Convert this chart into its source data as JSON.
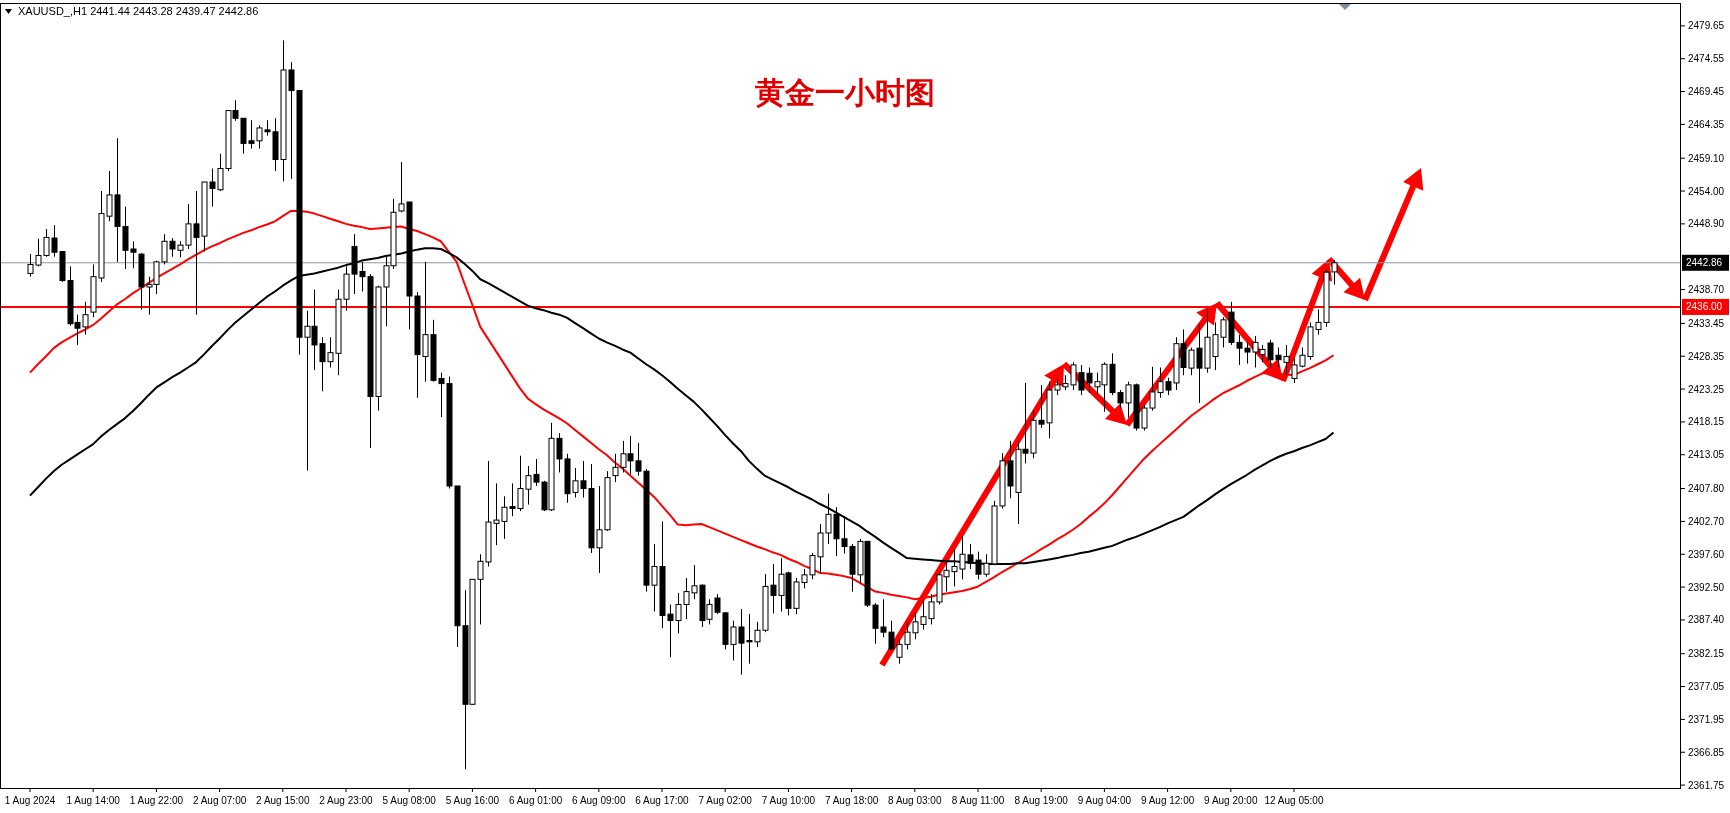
{
  "chart_data": {
    "type": "candlestick",
    "title": "黄金一小时图",
    "subtitle": "XAUUSD_,H1  2441.44 2443.28 2439.47 2442.86",
    "ylim": [
      2361.3,
      2483.2
    ],
    "categories": [
      "1 Aug 2024",
      null,
      null,
      null,
      null,
      null,
      null,
      null,
      "1 Aug 14:00",
      null,
      null,
      null,
      null,
      null,
      null,
      null,
      "1 Aug 22:00",
      null,
      null,
      null,
      null,
      null,
      null,
      null,
      "2 Aug 07:00",
      null,
      null,
      null,
      null,
      null,
      null,
      null,
      "2 Aug 15:00",
      null,
      null,
      null,
      null,
      null,
      null,
      null,
      "2 Aug 23:00",
      null,
      null,
      null,
      null,
      null,
      null,
      null,
      "5 Aug 08:00",
      null,
      null,
      null,
      null,
      null,
      null,
      null,
      "5 Aug 16:00",
      null,
      null,
      null,
      null,
      null,
      null,
      null,
      "6 Aug 01:00",
      null,
      null,
      null,
      null,
      null,
      null,
      null,
      "6 Aug 09:00",
      null,
      null,
      null,
      null,
      null,
      null,
      null,
      "6 Aug 17:00",
      null,
      null,
      null,
      null,
      null,
      null,
      null,
      "7 Aug 02:00",
      null,
      null,
      null,
      null,
      null,
      null,
      null,
      "7 Aug 10:00",
      null,
      null,
      null,
      null,
      null,
      null,
      null,
      "7 Aug 18:00",
      null,
      null,
      null,
      null,
      null,
      null,
      null,
      "8 Aug 03:00",
      null,
      null,
      null,
      null,
      null,
      null,
      null,
      "8 Aug 11:00",
      null,
      null,
      null,
      null,
      null,
      null,
      null,
      "8 Aug 19:00",
      null,
      null,
      null,
      null,
      null,
      null,
      null,
      "9 Aug 04:00",
      null,
      null,
      null,
      null,
      null,
      null,
      null,
      "9 Aug 12:00",
      null,
      null,
      null,
      null,
      null,
      null,
      null,
      "9 Aug 20:00",
      null,
      null,
      null,
      null,
      null,
      null,
      null,
      "12 Aug 05:00",
      null,
      null,
      null,
      null,
      null
    ],
    "yticks": [
      2479.65,
      2474.55,
      2469.45,
      2464.35,
      {
        "value": 2459.1,
        "label": "2459.10"
      },
      {
        "value": 2454,
        "label": "2454.00"
      },
      {
        "value": 2448.9,
        "label": "2448.90"
      },
      {
        "value": 2438.7,
        "label": "2438.70"
      },
      2433.45,
      2428.35,
      2423.25,
      2418.15,
      2413.05,
      {
        "value": 2407.8,
        "label": "2407.80"
      },
      {
        "value": 2402.7,
        "label": "2402.70"
      },
      {
        "value": 2397.6,
        "label": "2397.60"
      },
      {
        "value": 2392.5,
        "label": "2392.50"
      },
      {
        "value": 2387.4,
        "label": "2387.40"
      },
      2382.15,
      2377.05,
      2371.95,
      2366.85,
      2361.75
    ],
    "ref_lines": [
      {
        "axis": "y",
        "value": 2442.86,
        "label": "2442.86",
        "color": "#8a98a8"
      },
      {
        "axis": "y",
        "value": 2436,
        "label": "2436.00",
        "color": "#ff0000"
      }
    ],
    "ohlc": [
      [
        2441.2,
        2444.2,
        2440.7,
        2442.6
      ],
      [
        2442.5,
        2446.6,
        2442.3,
        2444.0
      ],
      [
        2444.0,
        2448.1,
        2443.8,
        2446.8
      ],
      [
        2446.7,
        2448.7,
        2443.8,
        2444.5
      ],
      [
        2444.6,
        2444.6,
        2439.9,
        2440.1
      ],
      [
        2440.1,
        2442.3,
        2433.1,
        2433.4
      ],
      [
        2433.6,
        2434.8,
        2430.1,
        2432.7
      ],
      [
        2432.9,
        2436.8,
        2431.7,
        2434.8
      ],
      [
        2435.2,
        2442.6,
        2434.4,
        2440.7
      ],
      [
        2440.5,
        2454.0,
        2439.9,
        2450.5
      ],
      [
        2450.1,
        2457.1,
        2449.3,
        2453.4
      ],
      [
        2453.4,
        2462.2,
        2443.0,
        2448.5
      ],
      [
        2448.5,
        2451.6,
        2441.9,
        2444.8
      ],
      [
        2445.0,
        2446.2,
        2442.0,
        2444.5
      ],
      [
        2444.2,
        2444.4,
        2435.6,
        2439.1
      ],
      [
        2439.1,
        2440.7,
        2434.8,
        2439.5
      ],
      [
        2439.5,
        2443.2,
        2438.0,
        2443.0
      ],
      [
        2443.0,
        2447.3,
        2442.6,
        2446.2
      ],
      [
        2446.2,
        2446.7,
        2443.8,
        2445.0
      ],
      [
        2444.8,
        2446.2,
        2443.7,
        2445.6
      ],
      [
        2445.6,
        2452.0,
        2445.0,
        2448.9
      ],
      [
        2448.9,
        2454.0,
        2434.8,
        2446.8
      ],
      [
        2447.0,
        2455.4,
        2444.6,
        2455.4
      ],
      [
        2455.4,
        2457.5,
        2451.6,
        2454.4
      ],
      [
        2454.2,
        2459.8,
        2454.0,
        2457.5
      ],
      [
        2457.5,
        2466.5,
        2457.1,
        2466.5
      ],
      [
        2466.5,
        2468.1,
        2464.9,
        2465.3
      ],
      [
        2465.3,
        2465.3,
        2459.8,
        2461.4
      ],
      [
        2461.8,
        2465.0,
        2460.6,
        2461.4
      ],
      [
        2461.8,
        2464.2,
        2460.6,
        2463.8
      ],
      [
        2463.5,
        2465.0,
        2462.6,
        2463.2
      ],
      [
        2463.2,
        2465.3,
        2457.1,
        2458.9
      ],
      [
        2458.9,
        2477.4,
        2455.5,
        2472.8
      ],
      [
        2472.8,
        2474.0,
        2455.9,
        2469.6
      ],
      [
        2469.6,
        2469.6,
        2428.6,
        2431.3
      ],
      [
        2431.3,
        2435.4,
        2410.6,
        2433.0
      ],
      [
        2433.0,
        2438.7,
        2426.2,
        2430.1
      ],
      [
        2430.3,
        2431.3,
        2422.9,
        2427.5
      ],
      [
        2427.5,
        2431.3,
        2426.6,
        2428.9
      ],
      [
        2428.8,
        2438.7,
        2425.4,
        2437.2
      ],
      [
        2437.2,
        2442.3,
        2435.4,
        2441.1
      ],
      [
        2445.4,
        2447.3,
        2438.0,
        2441.1
      ],
      [
        2441.5,
        2443.0,
        2438.4,
        2440.7
      ],
      [
        2440.7,
        2441.1,
        2414.1,
        2422.1
      ],
      [
        2422.1,
        2439.3,
        2419.9,
        2439.1
      ],
      [
        2439.1,
        2443.8,
        2433.0,
        2442.4
      ],
      [
        2442.4,
        2452.8,
        2441.9,
        2450.7
      ],
      [
        2450.9,
        2458.5,
        2450.7,
        2452.0
      ],
      [
        2452.3,
        2452.3,
        2432.5,
        2437.7
      ],
      [
        2437.7,
        2438.3,
        2421.9,
        2428.6
      ],
      [
        2428.3,
        2443.0,
        2424.4,
        2431.7
      ],
      [
        2431.7,
        2434.0,
        2424.4,
        2424.6
      ],
      [
        2424.9,
        2425.8,
        2418.9,
        2424.1
      ],
      [
        2424.1,
        2425.2,
        2407.8,
        2408.2
      ],
      [
        2408.2,
        2408.2,
        2383.2,
        2386.5
      ],
      [
        2386.5,
        2392.0,
        2364.2,
        2374.3
      ],
      [
        2374.3,
        2393.7,
        2374.2,
        2393.7
      ],
      [
        2393.7,
        2397.6,
        2386.7,
        2396.5
      ],
      [
        2396.4,
        2412.1,
        2395.7,
        2402.6
      ],
      [
        2402.4,
        2408.6,
        2399.0,
        2402.9
      ],
      [
        2402.7,
        2406.6,
        2400.0,
        2404.9
      ],
      [
        2405.0,
        2408.6,
        2403.5,
        2404.7
      ],
      [
        2404.7,
        2412.9,
        2404.3,
        2407.8
      ],
      [
        2407.7,
        2411.3,
        2405.3,
        2409.8
      ],
      [
        2410.0,
        2412.4,
        2408.2,
        2408.8
      ],
      [
        2408.8,
        2409.0,
        2404.3,
        2404.5
      ],
      [
        2404.5,
        2418.0,
        2404.3,
        2415.6
      ],
      [
        2415.6,
        2416.4,
        2410.3,
        2412.4
      ],
      [
        2412.4,
        2413.2,
        2405.6,
        2407.0
      ],
      [
        2407.2,
        2411.0,
        2406.4,
        2409.0
      ],
      [
        2409.0,
        2412.1,
        2406.4,
        2407.8
      ],
      [
        2407.8,
        2411.6,
        2397.8,
        2398.6
      ],
      [
        2398.6,
        2408.2,
        2394.7,
        2401.4
      ],
      [
        2401.4,
        2410.5,
        2401.2,
        2409.5
      ],
      [
        2409.8,
        2413.2,
        2408.8,
        2411.1
      ],
      [
        2411.1,
        2415.2,
        2410.3,
        2413.2
      ],
      [
        2413.2,
        2416.0,
        2410.0,
        2412.1
      ],
      [
        2412.1,
        2414.9,
        2409.8,
        2410.5
      ],
      [
        2410.5,
        2410.8,
        2391.8,
        2392.8
      ],
      [
        2392.8,
        2399.2,
        2388.7,
        2395.7
      ],
      [
        2395.7,
        2402.7,
        2386.1,
        2388.1
      ],
      [
        2388.3,
        2389.8,
        2381.6,
        2387.3
      ],
      [
        2387.3,
        2391.6,
        2385.3,
        2389.8
      ],
      [
        2389.8,
        2393.9,
        2387.5,
        2391.8
      ],
      [
        2391.6,
        2395.9,
        2390.6,
        2392.7
      ],
      [
        2392.8,
        2392.9,
        2386.3,
        2387.3
      ],
      [
        2387.5,
        2390.6,
        2386.7,
        2389.8
      ],
      [
        2390.8,
        2391.4,
        2388.3,
        2388.6
      ],
      [
        2388.5,
        2388.6,
        2382.8,
        2383.6
      ],
      [
        2383.6,
        2387.3,
        2381.1,
        2386.3
      ],
      [
        2386.3,
        2389.1,
        2378.9,
        2383.8
      ],
      [
        2384.2,
        2388.3,
        2380.6,
        2384.0
      ],
      [
        2384.0,
        2387.1,
        2383.2,
        2385.8
      ],
      [
        2385.8,
        2394.5,
        2385.5,
        2392.6
      ],
      [
        2392.8,
        2396.1,
        2388.4,
        2391.2
      ],
      [
        2391.2,
        2397.0,
        2388.7,
        2394.5
      ],
      [
        2394.7,
        2394.9,
        2388.1,
        2389.2
      ],
      [
        2389.2,
        2393.9,
        2388.3,
        2393.3
      ],
      [
        2393.2,
        2395.3,
        2392.3,
        2394.4
      ],
      [
        2394.4,
        2397.8,
        2393.7,
        2397.4
      ],
      [
        2397.2,
        2402.3,
        2394.7,
        2400.9
      ],
      [
        2400.9,
        2407.0,
        2399.2,
        2403.8
      ],
      [
        2403.8,
        2404.9,
        2397.3,
        2400.0
      ],
      [
        2400.0,
        2403.5,
        2397.7,
        2398.8
      ],
      [
        2398.8,
        2399.2,
        2391.8,
        2394.5
      ],
      [
        2394.4,
        2400.0,
        2393.1,
        2399.6
      ],
      [
        2399.6,
        2399.6,
        2389.4,
        2389.7
      ],
      [
        2389.7,
        2390.0,
        2383.7,
        2386.1
      ],
      [
        2386.3,
        2390.6,
        2384.7,
        2385.5
      ],
      [
        2385.5,
        2387.3,
        2382.8,
        2382.9
      ],
      [
        2381.6,
        2384.3,
        2380.6,
        2383.6
      ],
      [
        2383.6,
        2387.1,
        2382.8,
        2385.5
      ],
      [
        2385.4,
        2388.6,
        2384.4,
        2387.1
      ],
      [
        2386.7,
        2390.6,
        2385.9,
        2387.9
      ],
      [
        2387.6,
        2391.4,
        2386.7,
        2390.2
      ],
      [
        2390.2,
        2394.9,
        2389.8,
        2394.4
      ],
      [
        2394.1,
        2396.5,
        2391.8,
        2395.1
      ],
      [
        2394.9,
        2398.4,
        2392.6,
        2395.7
      ],
      [
        2395.3,
        2400.4,
        2393.7,
        2397.6
      ],
      [
        2397.5,
        2399.2,
        2395.3,
        2396.2
      ],
      [
        2396.7,
        2398.0,
        2393.7,
        2394.5
      ],
      [
        2394.5,
        2397.6,
        2394.1,
        2396.2
      ],
      [
        2396.1,
        2405.9,
        2395.9,
        2405.1
      ],
      [
        2405.1,
        2413.3,
        2404.7,
        2412.1
      ],
      [
        2412.1,
        2415.2,
        2406.3,
        2408.2
      ],
      [
        2407.2,
        2415.2,
        2402.3,
        2413.9
      ],
      [
        2413.9,
        2424.2,
        2411.7,
        2413.3
      ],
      [
        2413.3,
        2419.9,
        2412.5,
        2418.4
      ],
      [
        2418.4,
        2423.9,
        2417.2,
        2417.8
      ],
      [
        2418.0,
        2424.4,
        2415.6,
        2423.1
      ],
      [
        2423.1,
        2424.9,
        2422.3,
        2423.9
      ],
      [
        2423.6,
        2425.4,
        2423.1,
        2424.1
      ],
      [
        2423.9,
        2427.4,
        2423.1,
        2427.0
      ],
      [
        2425.8,
        2427.0,
        2422.3,
        2423.1
      ],
      [
        2425.7,
        2426.6,
        2422.7,
        2424.2
      ],
      [
        2423.6,
        2425.8,
        2422.3,
        2424.4
      ],
      [
        2423.9,
        2427.4,
        2419.7,
        2427.1
      ],
      [
        2427.1,
        2428.8,
        2422.3,
        2422.7
      ],
      [
        2422.7,
        2423.1,
        2420.3,
        2421.1
      ],
      [
        2421.1,
        2424.4,
        2418.8,
        2423.9
      ],
      [
        2423.9,
        2424.1,
        2416.8,
        2417.2
      ],
      [
        2417.2,
        2420.7,
        2416.8,
        2420.3
      ],
      [
        2420.3,
        2426.7,
        2419.9,
        2422.8
      ],
      [
        2422.7,
        2426.6,
        2421.9,
        2424.4
      ],
      [
        2424.4,
        2425.0,
        2422.3,
        2423.1
      ],
      [
        2424.2,
        2431.3,
        2423.1,
        2430.3
      ],
      [
        2430.3,
        2432.5,
        2425.4,
        2426.6
      ],
      [
        2426.5,
        2429.7,
        2425.4,
        2429.3
      ],
      [
        2429.6,
        2433.3,
        2421.1,
        2426.5
      ],
      [
        2426.5,
        2435.6,
        2425.8,
        2431.3
      ],
      [
        2428.3,
        2433.6,
        2426.2,
        2431.7
      ],
      [
        2431.3,
        2434.4,
        2429.7,
        2434.0
      ],
      [
        2435.2,
        2436.8,
        2430.1,
        2430.5
      ],
      [
        2430.5,
        2431.7,
        2427.0,
        2429.6
      ],
      [
        2429.6,
        2430.5,
        2427.2,
        2429.0
      ],
      [
        2429.0,
        2431.5,
        2426.6,
        2430.5
      ],
      [
        2428.6,
        2430.1,
        2427.4,
        2429.4
      ],
      [
        2430.4,
        2430.9,
        2426.6,
        2427.8
      ],
      [
        2428.5,
        2429.7,
        2426.6,
        2427.8
      ],
      [
        2427.4,
        2430.1,
        2425.4,
        2428.3
      ],
      [
        2424.9,
        2428.0,
        2424.2,
        2427.0
      ],
      [
        2426.8,
        2429.7,
        2426.6,
        2428.5
      ],
      [
        2428.3,
        2433.6,
        2427.8,
        2432.9
      ],
      [
        2432.5,
        2435.6,
        2431.7,
        2433.6
      ],
      [
        2433.6,
        2441.8,
        2432.9,
        2441.4
      ],
      [
        2441.44,
        2443.28,
        2439.47,
        2442.86
      ]
    ],
    "series": [
      {
        "type": "line",
        "color": "#ff0000",
        "values": [
          2425.8,
          2427.1,
          2428.3,
          2429.6,
          2430.5,
          2431.2,
          2431.9,
          2432.5,
          2433.2,
          2434.2,
          2435.3,
          2436.4,
          2437.2,
          2438.1,
          2438.9,
          2439.7,
          2440.5,
          2441.2,
          2441.9,
          2442.6,
          2443.4,
          2444.1,
          2444.8,
          2445.4,
          2445.9,
          2446.5,
          2447.0,
          2447.5,
          2447.9,
          2448.4,
          2448.8,
          2449.3,
          2450.1,
          2450.9,
          2450.9,
          2450.8,
          2450.5,
          2450.1,
          2449.7,
          2449.3,
          2448.9,
          2448.6,
          2448.4,
          2448.1,
          2448.2,
          2448.3,
          2448.4,
          2448.5,
          2448.1,
          2447.8,
          2447.3,
          2446.8,
          2446.2,
          2444.6,
          2443.0,
          2439.6,
          2436.3,
          2432.9,
          2431.0,
          2429.1,
          2427.2,
          2425.3,
          2423.4,
          2421.8,
          2420.9,
          2420.1,
          2419.4,
          2418.7,
          2417.9,
          2416.9,
          2415.9,
          2414.9,
          2413.9,
          2413.0,
          2411.9,
          2410.9,
          2409.8,
          2408.7,
          2407.6,
          2406.5,
          2405.1,
          2403.7,
          2402.2,
          2402.1,
          2402.2,
          2402.3,
          2401.8,
          2401.3,
          2400.8,
          2400.3,
          2399.8,
          2399.3,
          2398.8,
          2398.4,
          2397.9,
          2397.5,
          2396.9,
          2396.4,
          2395.8,
          2395.3,
          2394.7,
          2394.6,
          2394.4,
          2394.2,
          2393.9,
          2393.2,
          2392.5,
          2391.8,
          2391.6,
          2391.3,
          2391.1,
          2390.9,
          2390.6,
          2390.8,
          2391.0,
          2391.3,
          2391.5,
          2391.7,
          2391.9,
          2392.2,
          2392.6,
          2393.3,
          2394.0,
          2394.8,
          2395.5,
          2396.2,
          2396.9,
          2397.6,
          2398.4,
          2399.1,
          2399.9,
          2400.6,
          2401.4,
          2402.3,
          2403.4,
          2404.4,
          2405.5,
          2406.8,
          2408.2,
          2409.6,
          2411.0,
          2412.4,
          2413.6,
          2414.7,
          2415.8,
          2416.9,
          2418.0,
          2419.1,
          2420.0,
          2420.9,
          2421.8,
          2422.6,
          2423.2,
          2423.8,
          2424.5,
          2425.1,
          2425.7,
          2425.7,
          2425.6,
          2425.5,
          2425.4,
          2426.0,
          2426.5,
          2427.1,
          2427.7,
          2428.5
        ]
      },
      {
        "type": "line",
        "color": "#000000",
        "values": [
          2406.7,
          2408.0,
          2409.3,
          2410.5,
          2411.5,
          2412.3,
          2413.1,
          2413.9,
          2414.7,
          2415.9,
          2416.9,
          2417.8,
          2418.7,
          2419.8,
          2421.0,
          2422.3,
          2423.5,
          2424.3,
          2425.1,
          2425.8,
          2426.6,
          2427.4,
          2428.6,
          2429.9,
          2431.1,
          2432.4,
          2433.6,
          2434.6,
          2435.6,
          2436.6,
          2437.6,
          2438.4,
          2439.3,
          2440.1,
          2440.8,
          2441.0,
          2441.2,
          2441.5,
          2441.8,
          2442.1,
          2442.5,
          2442.8,
          2443.2,
          2443.4,
          2443.6,
          2443.9,
          2444.1,
          2444.3,
          2444.6,
          2444.9,
          2445.1,
          2445.1,
          2445.0,
          2444.4,
          2443.7,
          2442.7,
          2441.6,
          2440.3,
          2439.7,
          2439.0,
          2438.3,
          2437.6,
          2436.9,
          2436.2,
          2435.8,
          2435.5,
          2435.1,
          2434.8,
          2434.3,
          2433.5,
          2432.7,
          2431.9,
          2431.1,
          2430.5,
          2430.0,
          2429.4,
          2428.9,
          2428.0,
          2427.1,
          2426.3,
          2425.4,
          2424.4,
          2423.3,
          2422.3,
          2421.3,
          2420.1,
          2418.8,
          2417.5,
          2416.1,
          2414.8,
          2413.6,
          2412.1,
          2410.9,
          2409.8,
          2409.2,
          2408.6,
          2408.0,
          2407.3,
          2406.7,
          2406.1,
          2405.4,
          2404.8,
          2404.1,
          2403.4,
          2402.7,
          2402.0,
          2401.1,
          2400.3,
          2399.4,
          2398.6,
          2397.8,
          2397.0,
          2396.9,
          2396.8,
          2396.7,
          2396.6,
          2396.5,
          2396.5,
          2396.4,
          2396.3,
          2396.2,
          2396.1,
          2396.1,
          2396.1,
          2396.1,
          2396.2,
          2396.2,
          2396.4,
          2396.6,
          2396.8,
          2397.0,
          2397.3,
          2397.5,
          2397.8,
          2398.0,
          2398.3,
          2398.6,
          2398.9,
          2399.4,
          2399.9,
          2400.3,
          2400.8,
          2401.3,
          2401.8,
          2402.4,
          2402.9,
          2403.4,
          2404.3,
          2405.2,
          2406.0,
          2406.9,
          2407.7,
          2408.5,
          2409.2,
          2409.9,
          2410.7,
          2411.4,
          2412.1,
          2412.7,
          2413.2,
          2413.6,
          2414.1,
          2414.5,
          2415.0,
          2415.5,
          2416.5
        ]
      }
    ]
  }
}
